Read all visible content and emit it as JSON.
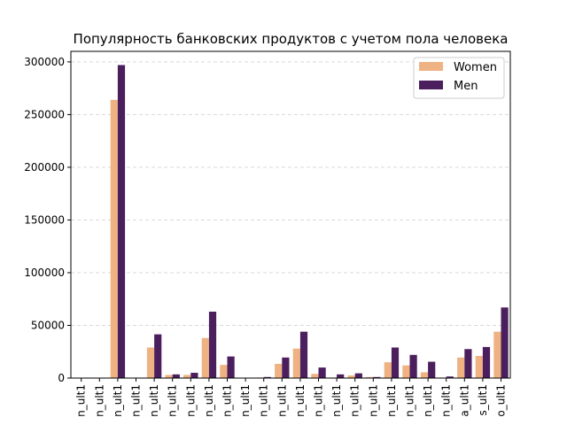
{
  "chart_data": {
    "type": "bar",
    "title": "Популярность банковских продуктов с учетом пола человека",
    "xlabel": "",
    "ylabel": "",
    "ylim": [
      0,
      310000
    ],
    "yticks": [
      0,
      50000,
      100000,
      150000,
      200000,
      250000,
      300000
    ],
    "ytick_labels": [
      "0",
      "50000",
      "100000",
      "150000",
      "200000",
      "250000",
      "300000"
    ],
    "grid": "y-dashed",
    "legend": "top-right",
    "categories": [
      "n_ult1",
      "n_ult1",
      "n_ult1",
      "n_ult1",
      "n_ult1",
      "n_ult1",
      "n_ult1",
      "n_ult1",
      "n_ult1",
      "n_ult1",
      "n_ult1",
      "n_ult1",
      "n_ult1",
      "n_ult1",
      "n_ult1",
      "n_ult1",
      "n_ult1",
      "n_ult1",
      "n_ult1",
      "n_ult1",
      "n_ult1",
      "a_ult1",
      "s_ult1",
      "o_ult1"
    ],
    "series": [
      {
        "name": "Women",
        "color": "#efb282",
        "values": [
          0,
          100,
          264000,
          0,
          29000,
          3000,
          3000,
          38000,
          12500,
          0,
          500,
          13500,
          28000,
          4000,
          500,
          2500,
          1000,
          15000,
          12000,
          5500,
          500,
          19500,
          21000,
          44000
        ]
      },
      {
        "name": "Men",
        "color": "#4b1f5d",
        "values": [
          0,
          100,
          297000,
          0,
          41500,
          3500,
          5000,
          63000,
          20500,
          100,
          1000,
          19500,
          44000,
          10000,
          3500,
          4500,
          1000,
          29000,
          22000,
          15500,
          1500,
          27500,
          29500,
          67000
        ]
      }
    ]
  }
}
